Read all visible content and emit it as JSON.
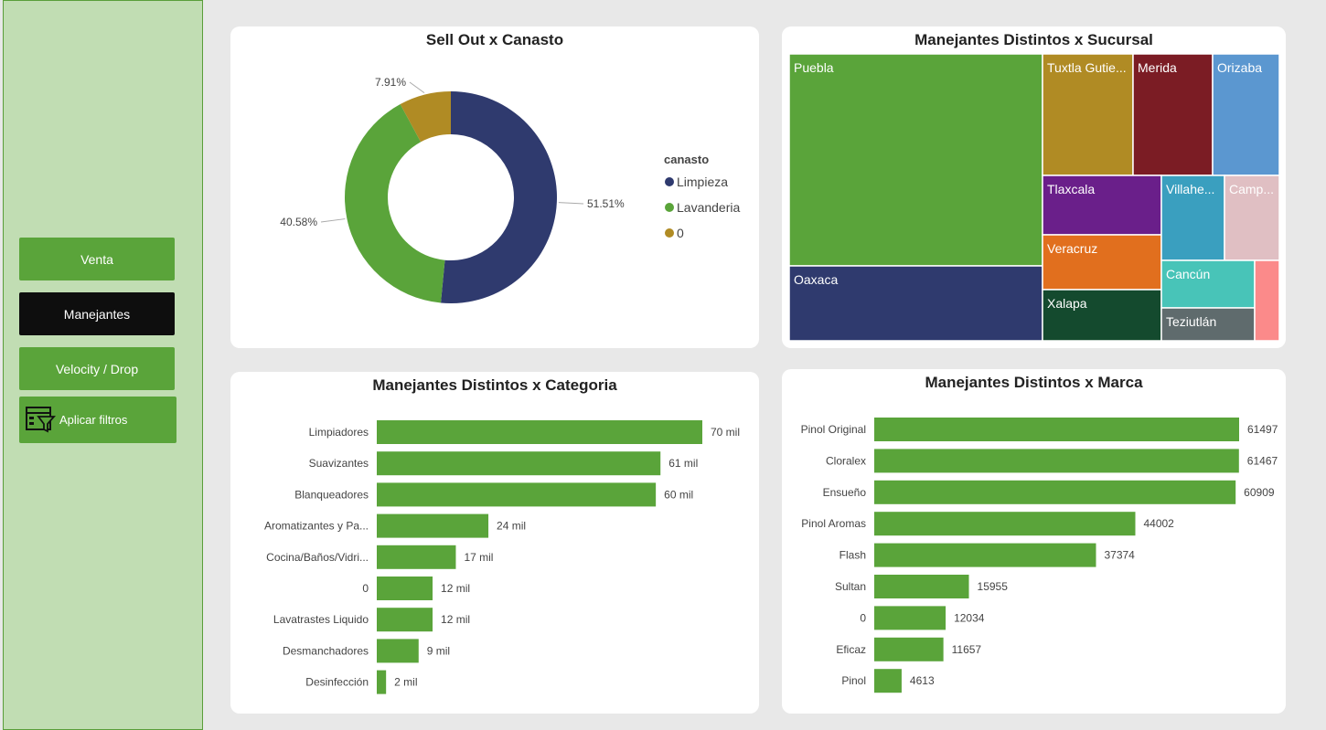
{
  "sidebar": {
    "buttons": [
      {
        "label": "Venta"
      },
      {
        "label": "Manejantes"
      },
      {
        "label": "Velocity / Drop"
      },
      {
        "label": "Aplicar filtros"
      }
    ]
  },
  "colors": {
    "green": "#5aa43a",
    "navy": "#2f3a6e",
    "gold": "#b08b24",
    "sidebar_bg": "#c1ddb3"
  },
  "chart_data": [
    {
      "type": "pie",
      "title": "Sell Out x Canasto",
      "legend_title": "canasto",
      "legend_position": "right",
      "donut": true,
      "slices": [
        {
          "label": "Limpieza",
          "value": 51.51,
          "display": "51.51%",
          "color": "#2f3a6e"
        },
        {
          "label": "Lavanderia",
          "value": 40.58,
          "display": "40.58%",
          "color": "#5aa43a"
        },
        {
          "label": "0",
          "value": 7.91,
          "display": "7.91%",
          "color": "#b08b24"
        }
      ]
    },
    {
      "type": "treemap",
      "title": "Manejantes Distintos x Sucursal",
      "nodes": [
        {
          "label": "Puebla",
          "color": "#5aa43a"
        },
        {
          "label": "Oaxaca",
          "color": "#2f3a6e"
        },
        {
          "label": "Tuxtla Gutie...",
          "color": "#b08b24"
        },
        {
          "label": "Merida",
          "color": "#7b1c24"
        },
        {
          "label": "Orizaba",
          "color": "#5b97d0"
        },
        {
          "label": "Tlaxcala",
          "color": "#6a1f8a"
        },
        {
          "label": "Veracruz",
          "color": "#e16f1e"
        },
        {
          "label": "Xalapa",
          "color": "#144a2e"
        },
        {
          "label": "Villahe...",
          "color": "#3a9fbf"
        },
        {
          "label": "Camp...",
          "color": "#e0bfc3"
        },
        {
          "label": "Cancún",
          "color": "#48c4b8"
        },
        {
          "label": "Teziutlán",
          "color": "#5f6b6d"
        },
        {
          "label": "",
          "color": "#fb8a8a"
        }
      ]
    },
    {
      "type": "bar",
      "orientation": "horizontal",
      "title": "Manejantes Distintos x Categoria",
      "categories": [
        "Limpiadores",
        "Suavizantes",
        "Blanqueadores",
        "Aromatizantes y Pa...",
        "Cocina/Baños/Vidri...",
        "0",
        "Lavatrastes Liquido",
        "Desmanchadores",
        "Desinfección"
      ],
      "values": [
        70,
        61,
        60,
        24,
        17,
        12,
        12,
        9,
        2
      ],
      "labels": [
        "70 mil",
        "61 mil",
        "60 mil",
        "24 mil",
        "17 mil",
        "12 mil",
        "12 mil",
        "9 mil",
        "2 mil"
      ],
      "xlim": [
        0,
        70
      ]
    },
    {
      "type": "bar",
      "orientation": "horizontal",
      "title": "Manejantes Distintos x Marca",
      "categories": [
        "Pinol Original",
        "Cloralex",
        "Ensueño",
        "Pinol Aromas",
        "Flash",
        "Sultan",
        "0",
        "Eficaz",
        "Pinol"
      ],
      "values": [
        61497,
        61467,
        60909,
        44002,
        37374,
        15955,
        12034,
        11657,
        4613
      ],
      "labels": [
        "61497",
        "61467",
        "60909",
        "44002",
        "37374",
        "15955",
        "12034",
        "11657",
        "4613"
      ],
      "xlim": [
        0,
        61497
      ]
    }
  ]
}
